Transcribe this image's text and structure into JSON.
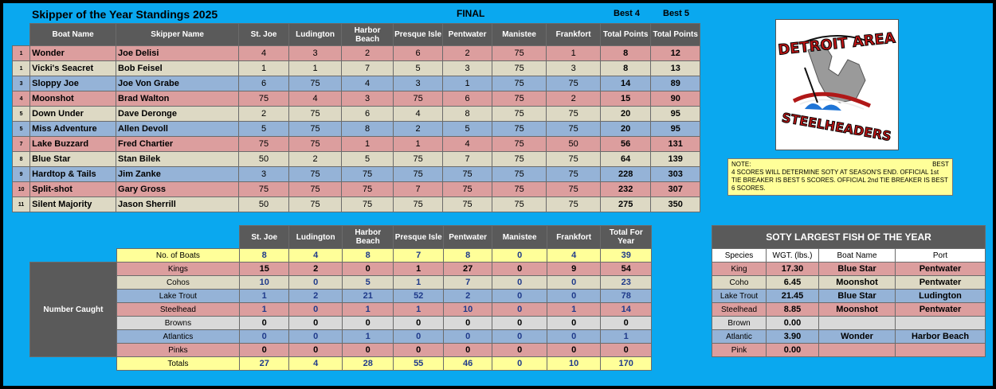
{
  "header": {
    "title": "Skipper of the Year Standings 2025",
    "status": "FINAL",
    "best4": "Best 4",
    "best5": "Best 5"
  },
  "standings": {
    "columns": [
      "Boat Name",
      "Skipper Name",
      "St. Joe",
      "Ludington",
      "Harbor Beach",
      "Presque Isle",
      "Pentwater",
      "Manistee",
      "Frankfort",
      "Total Points",
      "Total Points"
    ],
    "rows": [
      {
        "rank": "1",
        "boat": "Wonder",
        "skipper": "Joe Delisi",
        "scores": [
          "4",
          "3",
          "2",
          "6",
          "2",
          "75",
          "1"
        ],
        "best4": "8",
        "best5": "12",
        "color": "red"
      },
      {
        "rank": "1",
        "boat": "Vicki's Seacret",
        "skipper": "Bob Feisel",
        "scores": [
          "1",
          "1",
          "7",
          "5",
          "3",
          "75",
          "3"
        ],
        "best4": "8",
        "best5": "13",
        "color": "tan"
      },
      {
        "rank": "3",
        "boat": "Sloppy Joe",
        "skipper": "Joe Von Grabe",
        "scores": [
          "6",
          "75",
          "4",
          "3",
          "1",
          "75",
          "75"
        ],
        "best4": "14",
        "best5": "89",
        "color": "blue"
      },
      {
        "rank": "4",
        "boat": "Moonshot",
        "skipper": "Brad Walton",
        "scores": [
          "75",
          "4",
          "3",
          "75",
          "6",
          "75",
          "2"
        ],
        "best4": "15",
        "best5": "90",
        "color": "red"
      },
      {
        "rank": "5",
        "boat": "Down Under",
        "skipper": "Dave Deronge",
        "scores": [
          "2",
          "75",
          "6",
          "4",
          "8",
          "75",
          "75"
        ],
        "best4": "20",
        "best5": "95",
        "color": "tan"
      },
      {
        "rank": "5",
        "boat": "Miss Adventure",
        "skipper": "Allen Devoll",
        "scores": [
          "5",
          "75",
          "8",
          "2",
          "5",
          "75",
          "75"
        ],
        "best4": "20",
        "best5": "95",
        "color": "blue"
      },
      {
        "rank": "7",
        "boat": "Lake Buzzard",
        "skipper": "Fred Chartier",
        "scores": [
          "75",
          "75",
          "1",
          "1",
          "4",
          "75",
          "50"
        ],
        "best4": "56",
        "best5": "131",
        "color": "red"
      },
      {
        "rank": "8",
        "boat": "Blue Star",
        "skipper": "Stan Bilek",
        "scores": [
          "50",
          "2",
          "5",
          "75",
          "7",
          "75",
          "75"
        ],
        "best4": "64",
        "best5": "139",
        "color": "tan"
      },
      {
        "rank": "9",
        "boat": "Hardtop & Tails",
        "skipper": "Jim Zanke",
        "scores": [
          "3",
          "75",
          "75",
          "75",
          "75",
          "75",
          "75"
        ],
        "best4": "228",
        "best5": "303",
        "color": "blue"
      },
      {
        "rank": "10",
        "boat": "Split-shot",
        "skipper": "Gary Gross",
        "scores": [
          "75",
          "75",
          "75",
          "7",
          "75",
          "75",
          "75"
        ],
        "best4": "232",
        "best5": "307",
        "color": "red"
      },
      {
        "rank": "11",
        "boat": "Silent Majority",
        "skipper": "Jason Sherrill",
        "scores": [
          "50",
          "75",
          "75",
          "75",
          "75",
          "75",
          "75"
        ],
        "best4": "275",
        "best5": "350",
        "color": "tan"
      }
    ]
  },
  "catch": {
    "side_label": "Number Caught",
    "columns": [
      "St. Joe",
      "Ludington",
      "Harbor Beach",
      "Presque Isle",
      "Pentwater",
      "Manistee",
      "Frankfort",
      "Total For Year"
    ],
    "rows": [
      {
        "label": "No. of Boats",
        "values": [
          "8",
          "4",
          "8",
          "7",
          "8",
          "0",
          "4",
          "39"
        ],
        "color": "yel"
      },
      {
        "label": "Kings",
        "values": [
          "15",
          "2",
          "0",
          "1",
          "27",
          "0",
          "9",
          "54"
        ],
        "color": "red"
      },
      {
        "label": "Cohos",
        "values": [
          "10",
          "0",
          "5",
          "1",
          "7",
          "0",
          "0",
          "23"
        ],
        "color": "tan"
      },
      {
        "label": "Lake Trout",
        "values": [
          "1",
          "2",
          "21",
          "52",
          "2",
          "0",
          "0",
          "78"
        ],
        "color": "blue"
      },
      {
        "label": "Steelhead",
        "values": [
          "1",
          "0",
          "1",
          "1",
          "10",
          "0",
          "1",
          "14"
        ],
        "color": "red"
      },
      {
        "label": "Browns",
        "values": [
          "0",
          "0",
          "0",
          "0",
          "0",
          "0",
          "0",
          "0"
        ],
        "color": "gry"
      },
      {
        "label": "Atlantics",
        "values": [
          "0",
          "0",
          "1",
          "0",
          "0",
          "0",
          "0",
          "1"
        ],
        "color": "blue"
      },
      {
        "label": "Pinks",
        "values": [
          "0",
          "0",
          "0",
          "0",
          "0",
          "0",
          "0",
          "0"
        ],
        "color": "red"
      },
      {
        "label": "Totals",
        "values": [
          "27",
          "4",
          "28",
          "55",
          "46",
          "0",
          "10",
          "170"
        ],
        "color": "yel"
      }
    ]
  },
  "fish": {
    "title": "SOTY LARGEST FISH OF THE YEAR",
    "columns": [
      "Species",
      "WGT. (lbs.)",
      "Boat Name",
      "Port"
    ],
    "rows": [
      {
        "species": "King",
        "wgt": "17.30",
        "boat": "Blue Star",
        "port": "Pentwater",
        "color": "red"
      },
      {
        "species": "Coho",
        "wgt": "6.45",
        "boat": "Moonshot",
        "port": "Pentwater",
        "color": "tan"
      },
      {
        "species": "Lake Trout",
        "wgt": "21.45",
        "boat": "Blue Star",
        "port": "Ludington",
        "color": "blue"
      },
      {
        "species": "Steelhead",
        "wgt": "8.85",
        "boat": "Moonshot",
        "port": "Pentwater",
        "color": "red"
      },
      {
        "species": "Brown",
        "wgt": "0.00",
        "boat": "",
        "port": "",
        "color": "gry"
      },
      {
        "species": "Atlantic",
        "wgt": "3.90",
        "boat": "Wonder",
        "port": "Harbor Beach",
        "color": "blue"
      },
      {
        "species": "Pink",
        "wgt": "0.00",
        "boat": "",
        "port": "",
        "color": "red"
      }
    ]
  },
  "note": {
    "head": "NOTE:",
    "best": "BEST",
    "text": "4 SCORES WILL DETERMINE SOTY AT SEASON'S END. OFFICIAL 1st TIE BREAKER IS BEST 5 SCORES.           OFFICIAL  2nd TIE BREAKER IS BEST 6 SCORES."
  },
  "logo": {
    "line1": "DETROIT AREA",
    "line2": "STEELHEADERS"
  },
  "colors": {
    "background": "#0aa8ef",
    "header": "#5a5a5a",
    "red": "#dc9e9e",
    "tan": "#ddd9c4",
    "blue": "#95b3d7",
    "yellow": "#ffff99",
    "gray": "#d9d9d9"
  }
}
